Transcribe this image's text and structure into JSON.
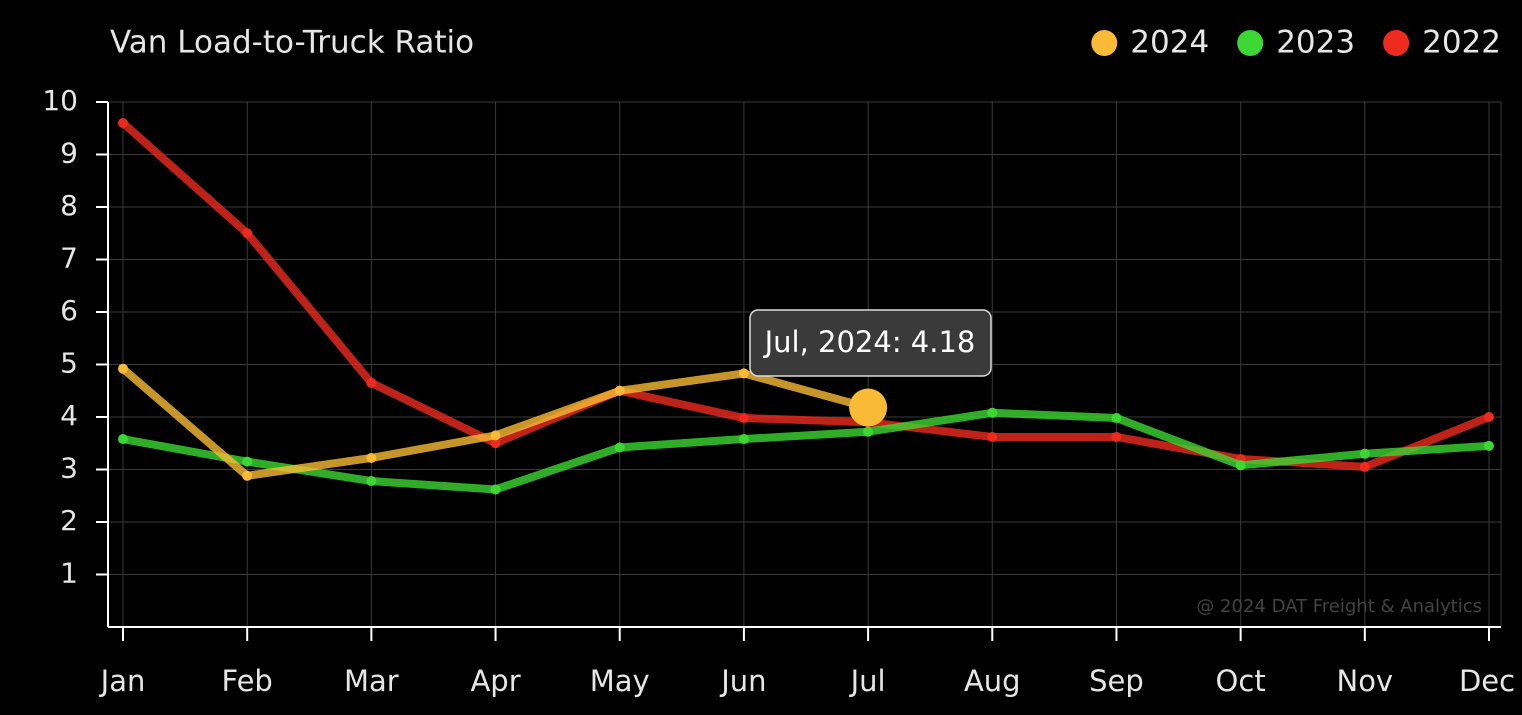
{
  "chart_data": {
    "type": "line",
    "title": "Van Load-to-Truck Ratio",
    "categories": [
      "Jan",
      "Feb",
      "Mar",
      "Apr",
      "May",
      "Jun",
      "Jul",
      "Aug",
      "Sep",
      "Oct",
      "Nov",
      "Dec"
    ],
    "series": [
      {
        "name": "2024",
        "color": "#f9bb35",
        "values": [
          4.92,
          2.88,
          3.22,
          3.65,
          4.5,
          4.83,
          4.18,
          null,
          null,
          null,
          null,
          null
        ]
      },
      {
        "name": "2023",
        "color": "#3cd733",
        "values": [
          3.58,
          3.15,
          2.78,
          2.62,
          3.42,
          3.58,
          3.72,
          4.08,
          3.98,
          3.08,
          3.3,
          3.45
        ]
      },
      {
        "name": "2022",
        "color": "#ee2a1e",
        "values": [
          9.6,
          7.5,
          4.65,
          3.5,
          4.5,
          3.98,
          3.9,
          3.62,
          3.62,
          3.2,
          3.05,
          4.0
        ]
      }
    ],
    "ylim": [
      0,
      10
    ],
    "yticks": [
      1,
      2,
      3,
      4,
      5,
      6,
      7,
      8,
      9,
      10
    ],
    "grid": true,
    "legend": "top-right",
    "tooltip": "Jul, 2024: 4.18",
    "watermark": "@ 2024 DAT Freight & Analytics"
  }
}
